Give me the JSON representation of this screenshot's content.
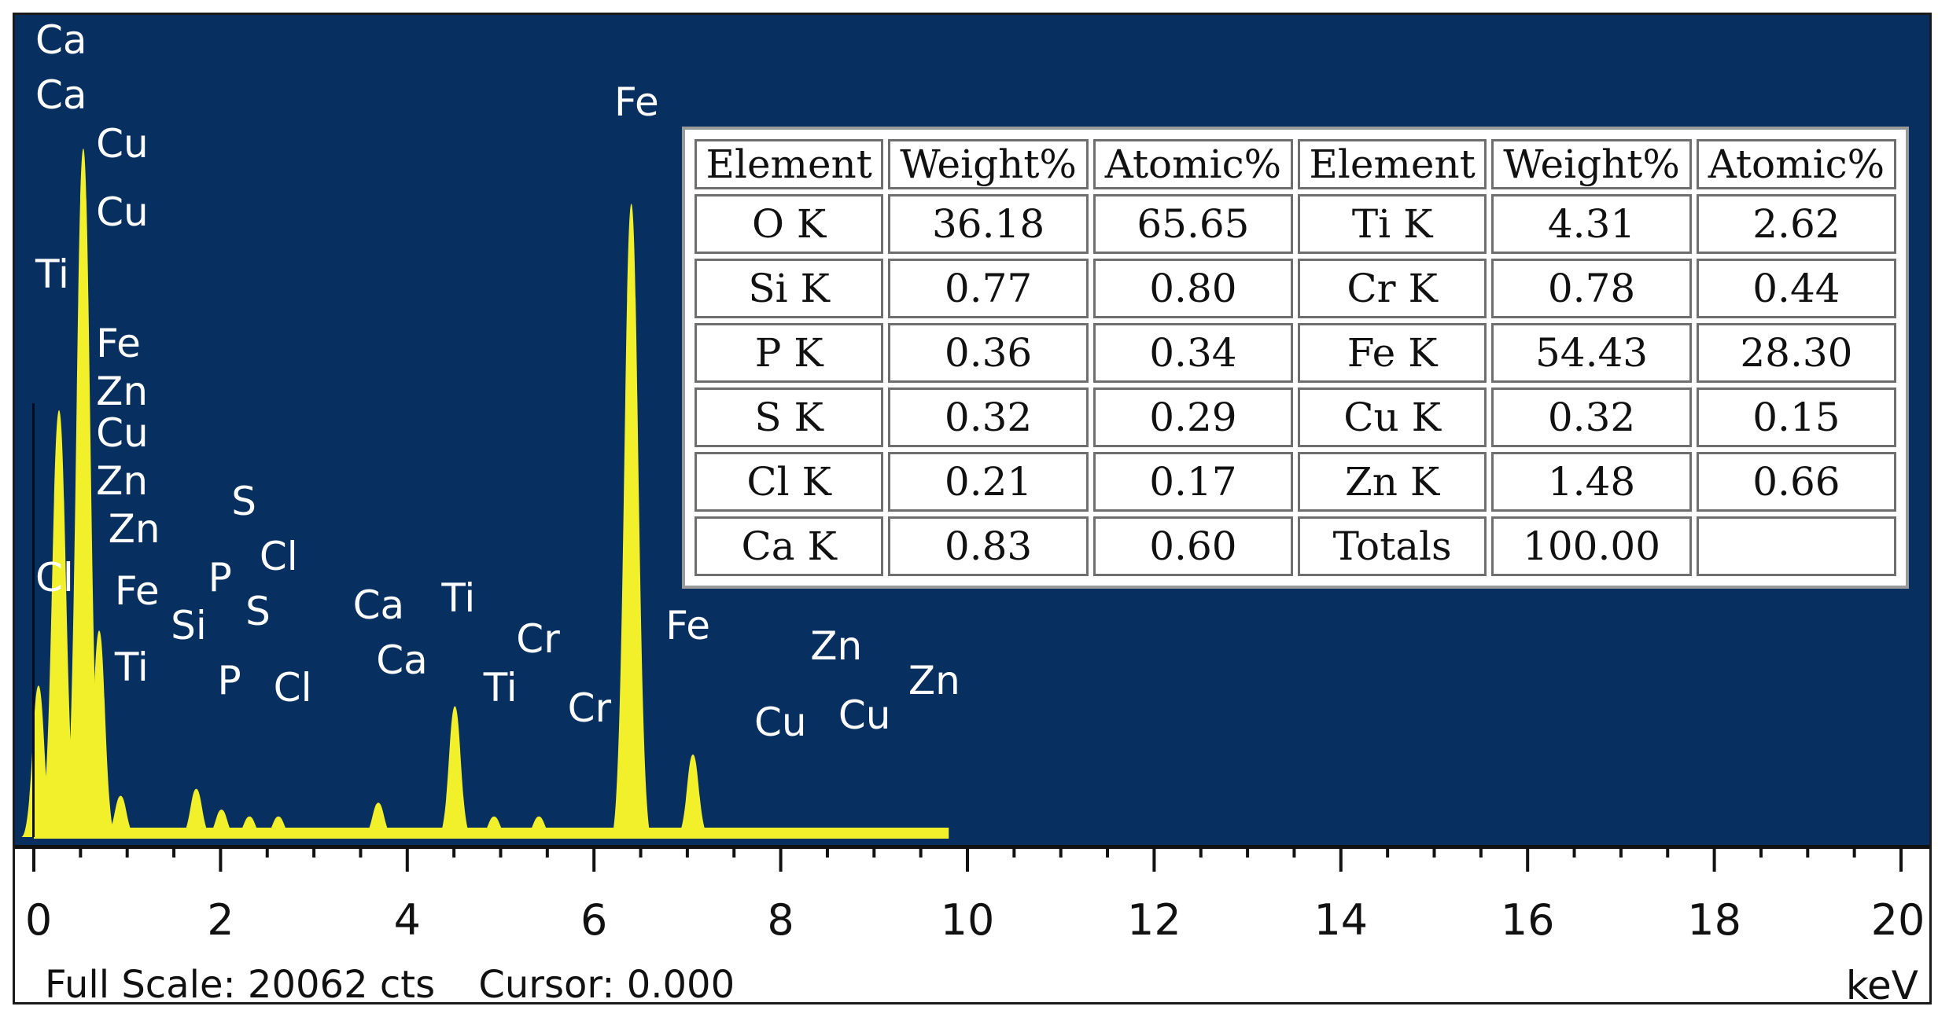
{
  "chart_data": {
    "type": "line",
    "xlabel": "keV",
    "xlim": [
      0,
      20
    ],
    "x_ticks": [
      "0",
      "2",
      "4",
      "6",
      "8",
      "10",
      "12",
      "14",
      "16",
      "18",
      "20"
    ],
    "peaks": [
      {
        "x": 0.05,
        "height": 0.22
      },
      {
        "x": 0.27,
        "height": 0.62
      },
      {
        "x": 0.53,
        "height": 1.0
      },
      {
        "x": 0.7,
        "height": 0.3
      },
      {
        "x": 0.93,
        "height": 0.06
      },
      {
        "x": 1.74,
        "height": 0.07
      },
      {
        "x": 2.01,
        "height": 0.04
      },
      {
        "x": 2.31,
        "height": 0.03
      },
      {
        "x": 2.62,
        "height": 0.03
      },
      {
        "x": 3.69,
        "height": 0.05
      },
      {
        "x": 4.51,
        "height": 0.19
      },
      {
        "x": 4.93,
        "height": 0.03
      },
      {
        "x": 5.41,
        "height": 0.03
      },
      {
        "x": 6.4,
        "height": 0.92
      },
      {
        "x": 7.06,
        "height": 0.12
      },
      {
        "x": 8.05,
        "height": 0.01
      },
      {
        "x": 8.64,
        "height": 0.01
      }
    ],
    "labels": [
      {
        "text": "Ca",
        "x": 0.0,
        "y": 1.14
      },
      {
        "text": "Ca",
        "x": 0.0,
        "y": 1.06
      },
      {
        "text": "Cu",
        "x": 0.65,
        "y": 0.99
      },
      {
        "text": "Cu",
        "x": 0.65,
        "y": 0.89
      },
      {
        "text": "Ti",
        "x": 0.0,
        "y": 0.8
      },
      {
        "text": "Fe",
        "x": 0.65,
        "y": 0.7
      },
      {
        "text": "Zn",
        "x": 0.65,
        "y": 0.63
      },
      {
        "text": "Cu",
        "x": 0.65,
        "y": 0.57
      },
      {
        "text": "Zn",
        "x": 0.65,
        "y": 0.5
      },
      {
        "text": "Zn",
        "x": 0.78,
        "y": 0.43
      },
      {
        "text": "S",
        "x": 2.1,
        "y": 0.47
      },
      {
        "text": "Cl",
        "x": 2.4,
        "y": 0.39
      },
      {
        "text": "Cl",
        "x": 0.0,
        "y": 0.36
      },
      {
        "text": "Fe",
        "x": 0.85,
        "y": 0.34
      },
      {
        "text": "P",
        "x": 1.85,
        "y": 0.36
      },
      {
        "text": "Si",
        "x": 1.45,
        "y": 0.29
      },
      {
        "text": "S",
        "x": 2.25,
        "y": 0.31
      },
      {
        "text": "Ca",
        "x": 3.4,
        "y": 0.32
      },
      {
        "text": "Ti",
        "x": 4.35,
        "y": 0.33
      },
      {
        "text": "Cr",
        "x": 5.15,
        "y": 0.27
      },
      {
        "text": "Ti",
        "x": 0.85,
        "y": 0.23
      },
      {
        "text": "P",
        "x": 1.95,
        "y": 0.21
      },
      {
        "text": "Cl",
        "x": 2.55,
        "y": 0.2
      },
      {
        "text": "Ca",
        "x": 3.65,
        "y": 0.24
      },
      {
        "text": "Ti",
        "x": 4.8,
        "y": 0.2
      },
      {
        "text": "Cr",
        "x": 5.7,
        "y": 0.17
      },
      {
        "text": "Fe",
        "x": 6.75,
        "y": 0.29
      },
      {
        "text": "Zn",
        "x": 8.3,
        "y": 0.26
      },
      {
        "text": "Zn",
        "x": 9.35,
        "y": 0.21
      },
      {
        "text": "Cu",
        "x": 7.7,
        "y": 0.15
      },
      {
        "text": "Cu",
        "x": 8.6,
        "y": 0.16
      },
      {
        "text": "Fe",
        "x": 6.2,
        "y": 1.05
      }
    ],
    "full_scale": "Full Scale: 20062 cts",
    "cursor": "Cursor: 0.000",
    "colors": {
      "background": "#072f60",
      "spectrum": "#f2f02a",
      "labels": "#ffffff"
    }
  },
  "table": {
    "headers": [
      "Element",
      "Weight%",
      "Atomic%",
      "Element",
      "Weight%",
      "Atomic%"
    ],
    "rows": [
      [
        "O K",
        "36.18",
        "65.65",
        "Ti K",
        "4.31",
        "2.62"
      ],
      [
        "Si K",
        "0.77",
        "0.80",
        "Cr K",
        "0.78",
        "0.44"
      ],
      [
        "P K",
        "0.36",
        "0.34",
        "Fe K",
        "54.43",
        "28.30"
      ],
      [
        "S K",
        "0.32",
        "0.29",
        "Cu K",
        "0.32",
        "0.15"
      ],
      [
        "Cl K",
        "0.21",
        "0.17",
        "Zn K",
        "1.48",
        "0.66"
      ],
      [
        "Ca K",
        "0.83",
        "0.60",
        "Totals",
        "100.00",
        ""
      ]
    ]
  }
}
